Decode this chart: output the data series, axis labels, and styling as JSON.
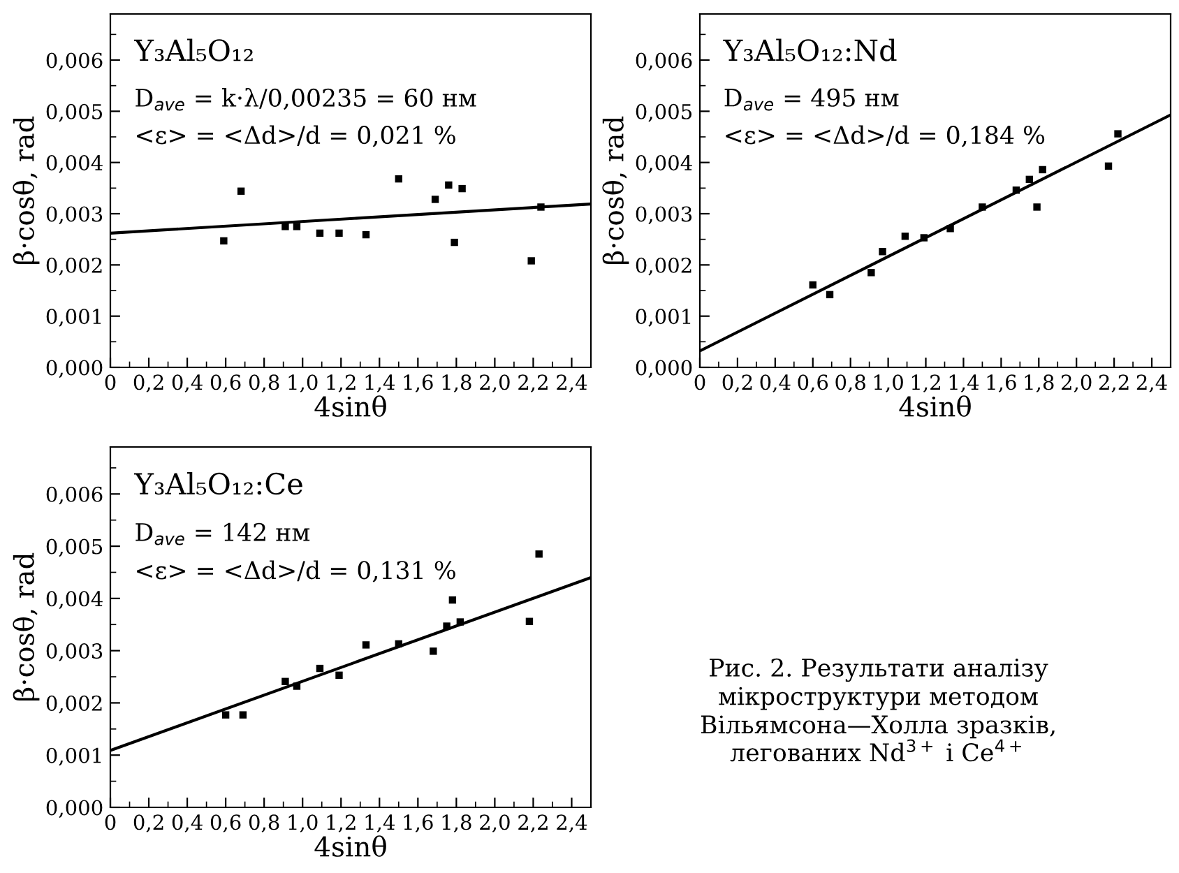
{
  "chart_data": [
    {
      "type": "scatter",
      "title": "Y₃Al₅O₁₂",
      "xlabel": "4sinθ",
      "ylabel": "β·cosθ, rad",
      "xlim": [
        0,
        2.5
      ],
      "ylim": [
        0,
        0.0069
      ],
      "grid": false,
      "legend": false,
      "xticks": [
        {
          "value": 0,
          "label": "0"
        },
        {
          "value": 0.2,
          "label": "0,2"
        },
        {
          "value": 0.4,
          "label": "0,4"
        },
        {
          "value": 0.6,
          "label": "0,6"
        },
        {
          "value": 0.8,
          "label": "0,8"
        },
        {
          "value": 1.0,
          "label": "1,0"
        },
        {
          "value": 1.2,
          "label": "1,2"
        },
        {
          "value": 1.4,
          "label": "1,4"
        },
        {
          "value": 1.6,
          "label": "1,6"
        },
        {
          "value": 1.8,
          "label": "1,8"
        },
        {
          "value": 2.0,
          "label": "2,0"
        },
        {
          "value": 2.2,
          "label": "2,2"
        },
        {
          "value": 2.4,
          "label": "2,4"
        }
      ],
      "yticks": [
        {
          "value": 0,
          "label": "0,000"
        },
        {
          "value": 0.001,
          "label": "0,001"
        },
        {
          "value": 0.002,
          "label": "0,002"
        },
        {
          "value": 0.003,
          "label": "0,003"
        },
        {
          "value": 0.004,
          "label": "0,004"
        },
        {
          "value": 0.005,
          "label": "0,005"
        },
        {
          "value": 0.006,
          "label": "0,006"
        }
      ],
      "annotations": [
        "D$_{ave}$ = k·λ/0,00235 = 60 нм",
        "<ε> = <Δd>/d = 0,021 %"
      ],
      "series": [
        {
          "marker": "square",
          "color": "#000000",
          "x": [
            0.59,
            0.68,
            0.91,
            0.97,
            1.09,
            1.19,
            1.33,
            1.5,
            1.69,
            1.76,
            1.79,
            1.83,
            2.19,
            2.24
          ],
          "values": [
            0.00247,
            0.00344,
            0.00275,
            0.00275,
            0.00262,
            0.00262,
            0.00259,
            0.00368,
            0.00328,
            0.00356,
            0.00244,
            0.00349,
            0.00208,
            0.00313
          ]
        },
        {
          "type": "line",
          "color": "#000000",
          "x": [
            0,
            2.5
          ],
          "values": [
            0.00262,
            0.00319
          ]
        }
      ]
    },
    {
      "type": "scatter",
      "title": "Y₃Al₅O₁₂:Nd",
      "xlabel": "4sinθ",
      "ylabel": "β·cosθ, rad",
      "xlim": [
        0,
        2.5
      ],
      "ylim": [
        0,
        0.0069
      ],
      "grid": false,
      "legend": false,
      "xticks": [
        {
          "value": 0,
          "label": "0"
        },
        {
          "value": 0.2,
          "label": "0,2"
        },
        {
          "value": 0.4,
          "label": "0,4"
        },
        {
          "value": 0.6,
          "label": "0,6"
        },
        {
          "value": 0.8,
          "label": "0,8"
        },
        {
          "value": 1.0,
          "label": "1,0"
        },
        {
          "value": 1.2,
          "label": "1,2"
        },
        {
          "value": 1.4,
          "label": "1,4"
        },
        {
          "value": 1.6,
          "label": "1,6"
        },
        {
          "value": 1.8,
          "label": "1,8"
        },
        {
          "value": 2.0,
          "label": "2,0"
        },
        {
          "value": 2.2,
          "label": "2,2"
        },
        {
          "value": 2.4,
          "label": "2,4"
        }
      ],
      "yticks": [
        {
          "value": 0,
          "label": "0,000"
        },
        {
          "value": 0.001,
          "label": "0,001"
        },
        {
          "value": 0.002,
          "label": "0,002"
        },
        {
          "value": 0.003,
          "label": "0,003"
        },
        {
          "value": 0.004,
          "label": "0,004"
        },
        {
          "value": 0.005,
          "label": "0,005"
        },
        {
          "value": 0.006,
          "label": "0,006"
        }
      ],
      "annotations": [
        "D$_{ave}$ = 495 нм",
        "<ε> = <Δd>/d = 0,184 %"
      ],
      "series": [
        {
          "marker": "square",
          "color": "#000000",
          "x": [
            0.6,
            0.69,
            0.91,
            0.97,
            1.09,
            1.19,
            1.33,
            1.5,
            1.68,
            1.75,
            1.79,
            1.82,
            2.17,
            2.22
          ],
          "values": [
            0.00161,
            0.00142,
            0.00185,
            0.00226,
            0.00256,
            0.00253,
            0.00271,
            0.00313,
            0.00346,
            0.00367,
            0.00313,
            0.00386,
            0.00393,
            0.00456
          ]
        },
        {
          "type": "line",
          "color": "#000000",
          "x": [
            0,
            2.5
          ],
          "values": [
            0.00032,
            0.00493
          ]
        }
      ]
    },
    {
      "type": "scatter",
      "title": "Y₃Al₅O₁₂:Ce",
      "xlabel": "4sinθ",
      "ylabel": "β·cosθ, rad",
      "xlim": [
        0,
        2.5
      ],
      "ylim": [
        0,
        0.0069
      ],
      "grid": false,
      "legend": false,
      "xticks": [
        {
          "value": 0,
          "label": "0"
        },
        {
          "value": 0.2,
          "label": "0,2"
        },
        {
          "value": 0.4,
          "label": "0,4"
        },
        {
          "value": 0.6,
          "label": "0,6"
        },
        {
          "value": 0.8,
          "label": "0,8"
        },
        {
          "value": 1.0,
          "label": "1,0"
        },
        {
          "value": 1.2,
          "label": "1,2"
        },
        {
          "value": 1.4,
          "label": "1,4"
        },
        {
          "value": 1.6,
          "label": "1,6"
        },
        {
          "value": 1.8,
          "label": "1,8"
        },
        {
          "value": 2.0,
          "label": "2,0"
        },
        {
          "value": 2.2,
          "label": "2,2"
        },
        {
          "value": 2.4,
          "label": "2,4"
        }
      ],
      "yticks": [
        {
          "value": 0,
          "label": "0,000"
        },
        {
          "value": 0.001,
          "label": "0,001"
        },
        {
          "value": 0.002,
          "label": "0,002"
        },
        {
          "value": 0.003,
          "label": "0,003"
        },
        {
          "value": 0.004,
          "label": "0,004"
        },
        {
          "value": 0.005,
          "label": "0,005"
        },
        {
          "value": 0.006,
          "label": "0,006"
        }
      ],
      "annotations": [
        "D$_{ave}$ = 142 нм",
        "<ε> = <Δd>/d = 0,131 %",
        "Рис. 2. Результати аналізу\nмікроструктури методом\nВільямсона—Холла зразків,\nлегованих Nd$^{3+}$ і Ce$^{4+}$"
      ],
      "series": [
        {
          "marker": "square",
          "color": "#000000",
          "x": [
            0.6,
            0.69,
            0.91,
            0.97,
            1.09,
            1.19,
            1.33,
            1.5,
            1.68,
            1.75,
            1.78,
            1.82,
            2.18,
            2.23
          ],
          "values": [
            0.00177,
            0.00177,
            0.00241,
            0.00232,
            0.00266,
            0.00253,
            0.00311,
            0.00313,
            0.00299,
            0.00347,
            0.00397,
            0.00355,
            0.00356,
            0.00485
          ]
        },
        {
          "type": "line",
          "color": "#000000",
          "x": [
            0,
            2.5
          ],
          "values": [
            0.00109,
            0.0044
          ]
        }
      ]
    }
  ]
}
